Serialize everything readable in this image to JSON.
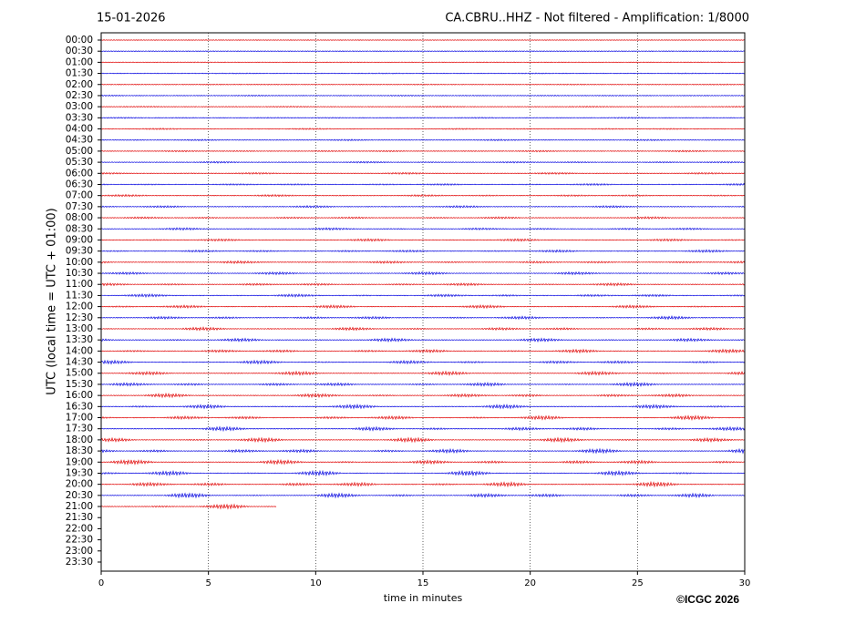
{
  "chart_data": {
    "type": "helicorder",
    "date": "15-01-2026",
    "title": "CA.CBRU..HHZ - Not filtered - Amplification: 1/8000",
    "xlabel": "time in minutes",
    "ylabel": "UTC (local time = UTC + 01:00)",
    "copyright": "©ICGC 2026",
    "categories": [
      "00:00",
      "00:30",
      "01:00",
      "01:30",
      "02:00",
      "02:30",
      "03:00",
      "03:30",
      "04:00",
      "04:30",
      "05:00",
      "05:30",
      "06:00",
      "06:30",
      "07:00",
      "07:30",
      "08:00",
      "08:30",
      "09:00",
      "09:30",
      "10:00",
      "10:30",
      "11:00",
      "11:30",
      "12:00",
      "12:30",
      "13:00",
      "13:30",
      "14:00",
      "14:30",
      "15:00",
      "15:30",
      "16:00",
      "16:30",
      "17:00",
      "17:30",
      "18:00",
      "18:30",
      "19:00",
      "19:30",
      "20:00",
      "20:30",
      "21:00",
      "21:30",
      "22:00",
      "22:30",
      "23:00",
      "23:30"
    ],
    "trace_ends": [
      30,
      30,
      30,
      30,
      30,
      30,
      30,
      30,
      30,
      30,
      30,
      30,
      30,
      30,
      30,
      30,
      30,
      30,
      30,
      30,
      30,
      30,
      30,
      30,
      30,
      30,
      30,
      30,
      30,
      30,
      30,
      30,
      30,
      30,
      30,
      30,
      30,
      30,
      30,
      30,
      30,
      30,
      8.2
    ],
    "colors": [
      "#e00000",
      "#0000e0"
    ],
    "xlim": [
      0,
      30
    ],
    "xticks": [
      0,
      5,
      10,
      15,
      20,
      25,
      30
    ],
    "grid": true
  }
}
